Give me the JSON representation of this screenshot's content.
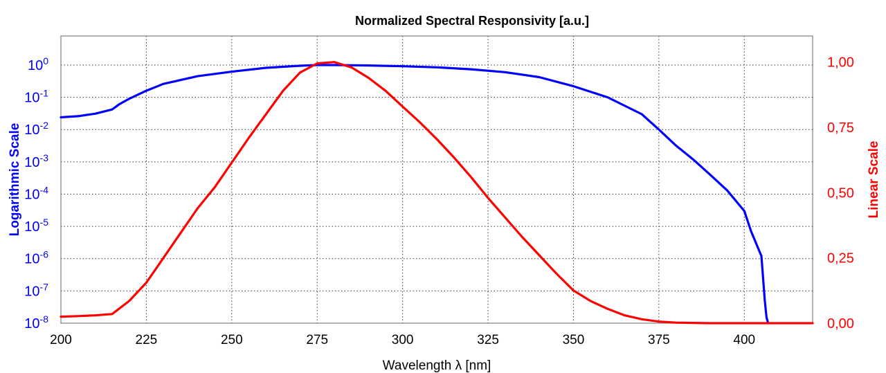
{
  "chart_data": {
    "type": "line",
    "title": "Normalized Spectral Responsivity [a.u.]",
    "xlabel": "Wavelength λ [nm]",
    "ylabel_left": "Logarithmic Scale",
    "ylabel_right": "Linear Scale",
    "xlim": [
      200,
      420
    ],
    "x_ticks": [
      "200",
      "225",
      "250",
      "275",
      "300",
      "325",
      "350",
      "375",
      "400"
    ],
    "x_tick_values": [
      200,
      225,
      250,
      275,
      300,
      325,
      350,
      375,
      400
    ],
    "ylim_left_log10": [
      -8,
      0.9
    ],
    "y_ticks_left": [
      {
        "base": "10",
        "exp": "0",
        "value": 1
      },
      {
        "base": "10",
        "exp": "-1",
        "value": 0.1
      },
      {
        "base": "10",
        "exp": "-2",
        "value": 0.01
      },
      {
        "base": "10",
        "exp": "-3",
        "value": 0.001
      },
      {
        "base": "10",
        "exp": "-4",
        "value": 0.0001
      },
      {
        "base": "10",
        "exp": "-5",
        "value": 1e-05
      },
      {
        "base": "10",
        "exp": "-6",
        "value": 1e-06
      },
      {
        "base": "10",
        "exp": "-7",
        "value": 1e-07
      },
      {
        "base": "10",
        "exp": "-8",
        "value": 1e-08
      }
    ],
    "ylim_right": [
      0,
      1.1
    ],
    "y_ticks_right": [
      {
        "label": "1,00",
        "value": 1.0
      },
      {
        "label": "0,75",
        "value": 0.75
      },
      {
        "label": "0,50",
        "value": 0.5
      },
      {
        "label": "0,25",
        "value": 0.25
      },
      {
        "label": "0,00",
        "value": 0.0
      }
    ],
    "grid": true,
    "series": [
      {
        "axis": "left",
        "scale": "log",
        "color": "#0000ff",
        "x": [
          200,
          205,
          210,
          215,
          217,
          220,
          225,
          230,
          240,
          250,
          260,
          270,
          275,
          280,
          290,
          300,
          310,
          320,
          330,
          340,
          350,
          360,
          370,
          375,
          380,
          385,
          390,
          395,
          400,
          402,
          405,
          406,
          406.5,
          407
        ],
        "y": [
          0.024,
          0.026,
          0.031,
          0.042,
          0.06,
          0.09,
          0.16,
          0.26,
          0.45,
          0.62,
          0.82,
          0.95,
          1.0,
          1.0,
          0.97,
          0.92,
          0.85,
          0.74,
          0.6,
          0.42,
          0.22,
          0.1,
          0.03,
          0.01,
          0.0032,
          0.0012,
          0.0004,
          0.00013,
          3e-05,
          7e-06,
          1.2e-06,
          5e-08,
          1.5e-08,
          1e-08
        ]
      },
      {
        "axis": "right",
        "scale": "linear",
        "color": "#ff0000",
        "x": [
          200,
          205,
          210,
          215,
          220,
          225,
          230,
          235,
          240,
          245,
          250,
          255,
          260,
          265,
          270,
          275,
          280,
          285,
          290,
          295,
          300,
          305,
          310,
          315,
          320,
          325,
          330,
          335,
          340,
          345,
          350,
          355,
          360,
          365,
          370,
          375,
          380,
          385,
          390,
          420
        ],
        "y": [
          0.025,
          0.027,
          0.03,
          0.035,
          0.085,
          0.155,
          0.25,
          0.345,
          0.44,
          0.52,
          0.615,
          0.71,
          0.8,
          0.89,
          0.96,
          0.995,
          1.0,
          0.98,
          0.94,
          0.89,
          0.83,
          0.77,
          0.705,
          0.635,
          0.56,
          0.48,
          0.405,
          0.33,
          0.26,
          0.19,
          0.125,
          0.085,
          0.055,
          0.03,
          0.015,
          0.006,
          0.002,
          0.001,
          0.0,
          0.0
        ]
      }
    ]
  },
  "colors": {
    "log_axis": "#0000ff",
    "linear_axis": "#ff0000",
    "grid": "#333333",
    "frame": "#7f7f7f"
  }
}
